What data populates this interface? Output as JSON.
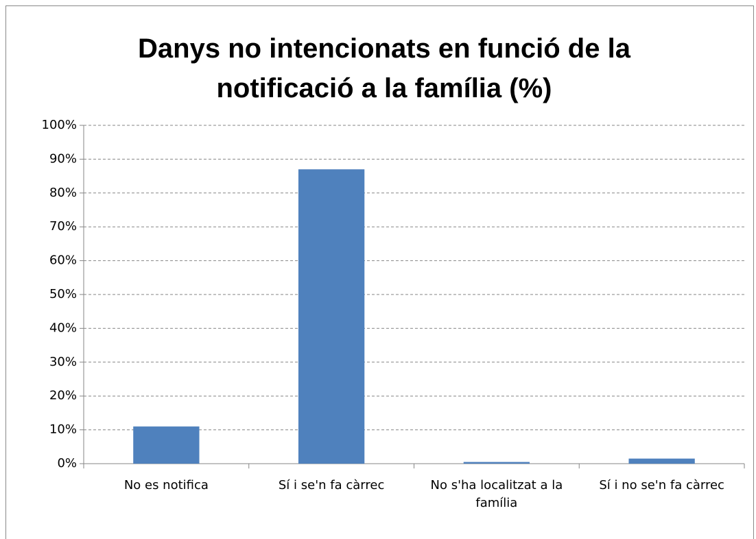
{
  "chart_data": {
    "type": "bar",
    "title": "Danys no intencionats en funció de la notificació a la família (%)",
    "categories": [
      "No es notifica",
      "Sí i se'n fa càrrec",
      "No s'ha localitzat a la família",
      "Sí i no se'n fa càrrec"
    ],
    "values": [
      11,
      87,
      0.5,
      1.5
    ],
    "color": "#4f81bd",
    "ylim": [
      0,
      100
    ],
    "yticks": [
      {
        "value": 0,
        "label": "0%"
      },
      {
        "value": 10,
        "label": "10%"
      },
      {
        "value": 20,
        "label": "20%"
      },
      {
        "value": 30,
        "label": "30%"
      },
      {
        "value": 40,
        "label": "40%"
      },
      {
        "value": 50,
        "label": "50%"
      },
      {
        "value": 60,
        "label": "60%"
      },
      {
        "value": 70,
        "label": "70%"
      },
      {
        "value": 80,
        "label": "80%"
      },
      {
        "value": 90,
        "label": "90%"
      },
      {
        "value": 100,
        "label": "100%"
      }
    ],
    "grid": true
  }
}
